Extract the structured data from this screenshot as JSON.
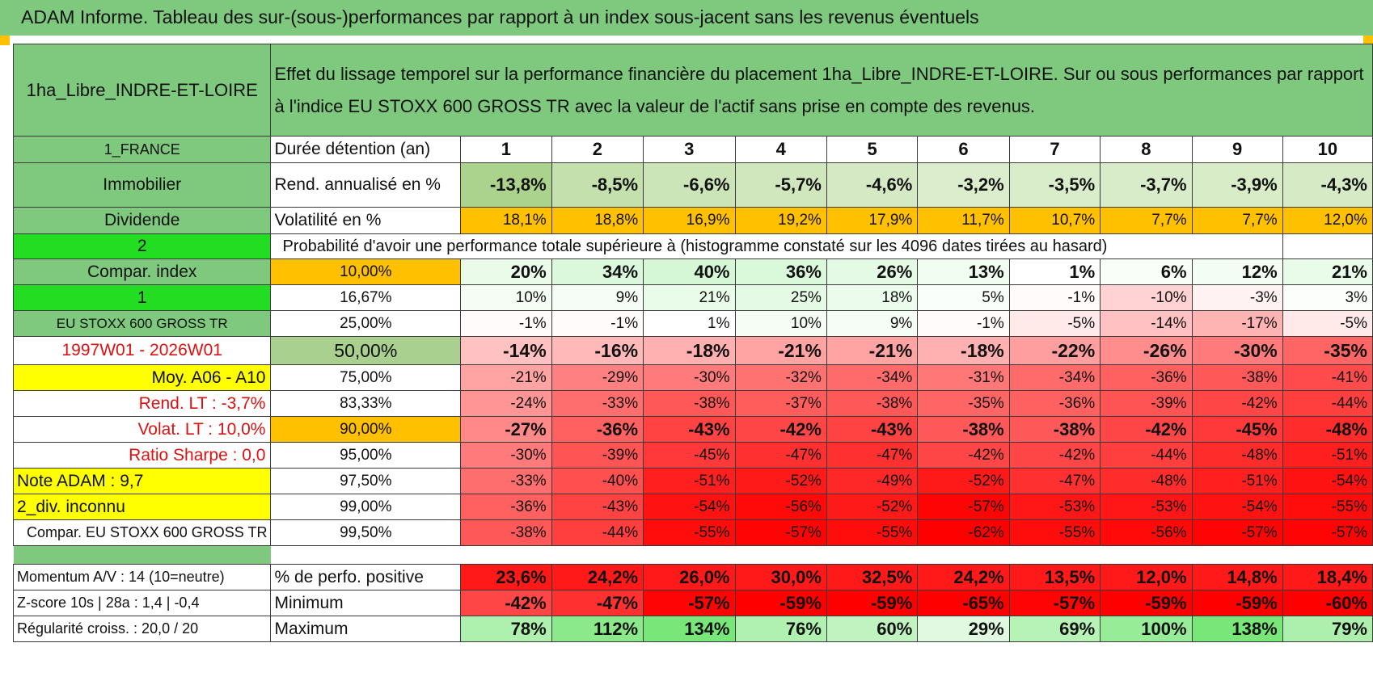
{
  "title": "ADAM Informe. Tableau des sur-(sous-)performances par rapport à un index sous-jacent sans les revenus éventuels",
  "colors": {
    "header_green": "#7fc97f",
    "bright_green": "#22dd22",
    "yellow": "#ffff00",
    "orange": "#ffc000",
    "light_green": "#a9d08e"
  },
  "fund_name": "1ha_Libre_INDRE-ET-LOIRE",
  "description": "Effet du lissage temporel sur la performance financière du placement 1ha_Libre_INDRE-ET-LOIRE. Sur ou sous performances par rapport à l'indice EU STOXX 600 GROSS TR avec la valeur de l'actif sans prise en compte des revenus.",
  "side": {
    "country": "1_FRANCE",
    "asset": "Immobilier",
    "dividend": "Dividende",
    "two": "2",
    "compar_index": "Compar. index",
    "one": "1",
    "index_name": "EU STOXX 600 GROSS TR",
    "period": "1997W01 - 2026W01",
    "moy": "Moy. A06 - A10",
    "rend_lt": "Rend. LT :    -3,7%",
    "volat_lt": "Volat. LT :    10,0%",
    "sharpe": "Ratio Sharpe :     0,0",
    "note": "Note ADAM : 9,7",
    "div": "2_div. inconnu",
    "compar_full": "Compar. EU STOXX 600 GROSS TR"
  },
  "labels": {
    "holding": "Durée détention (an)",
    "rend": "Rend. annualisé en %",
    "vol": "Volatilité en %",
    "proba": "Probabilité d'avoir une performance totale supérieure à (histogramme constaté sur les 4096 dates tirées au hasard)"
  },
  "years": [
    "1",
    "2",
    "3",
    "4",
    "5",
    "6",
    "7",
    "8",
    "9",
    "10"
  ],
  "rend": [
    "-13,8%",
    "-8,5%",
    "-6,6%",
    "-5,7%",
    "-4,6%",
    "-3,2%",
    "-3,5%",
    "-3,7%",
    "-3,9%",
    "-4,3%"
  ],
  "vol": [
    "18,1%",
    "18,8%",
    "16,9%",
    "19,2%",
    "17,9%",
    "11,7%",
    "10,7%",
    "7,7%",
    "7,7%",
    "12,0%"
  ],
  "percentile_rows": [
    {
      "pct": "10,00%",
      "v": [
        "20%",
        "34%",
        "40%",
        "36%",
        "26%",
        "13%",
        "1%",
        "6%",
        "12%",
        "21%"
      ]
    },
    {
      "pct": "16,67%",
      "v": [
        "10%",
        "9%",
        "21%",
        "25%",
        "18%",
        "5%",
        "-1%",
        "-10%",
        "-3%",
        "3%"
      ]
    },
    {
      "pct": "25,00%",
      "v": [
        "-1%",
        "-1%",
        "1%",
        "10%",
        "9%",
        "-1%",
        "-5%",
        "-14%",
        "-17%",
        "-5%"
      ]
    },
    {
      "pct": "50,00%",
      "v": [
        "-14%",
        "-16%",
        "-18%",
        "-21%",
        "-21%",
        "-18%",
        "-22%",
        "-26%",
        "-30%",
        "-35%"
      ]
    },
    {
      "pct": "75,00%",
      "v": [
        "-21%",
        "-29%",
        "-30%",
        "-32%",
        "-34%",
        "-31%",
        "-34%",
        "-36%",
        "-38%",
        "-41%"
      ]
    },
    {
      "pct": "83,33%",
      "v": [
        "-24%",
        "-33%",
        "-38%",
        "-37%",
        "-38%",
        "-35%",
        "-36%",
        "-39%",
        "-42%",
        "-44%"
      ]
    },
    {
      "pct": "90,00%",
      "v": [
        "-27%",
        "-36%",
        "-43%",
        "-42%",
        "-43%",
        "-38%",
        "-38%",
        "-42%",
        "-45%",
        "-48%"
      ]
    },
    {
      "pct": "95,00%",
      "v": [
        "-30%",
        "-39%",
        "-45%",
        "-47%",
        "-47%",
        "-42%",
        "-42%",
        "-44%",
        "-48%",
        "-51%"
      ]
    },
    {
      "pct": "97,50%",
      "v": [
        "-33%",
        "-40%",
        "-51%",
        "-52%",
        "-49%",
        "-52%",
        "-47%",
        "-48%",
        "-51%",
        "-54%"
      ]
    },
    {
      "pct": "99,00%",
      "v": [
        "-36%",
        "-43%",
        "-54%",
        "-56%",
        "-52%",
        "-57%",
        "-53%",
        "-53%",
        "-54%",
        "-55%"
      ]
    },
    {
      "pct": "99,50%",
      "v": [
        "-38%",
        "-44%",
        "-55%",
        "-57%",
        "-55%",
        "-62%",
        "-55%",
        "-56%",
        "-57%",
        "-57%"
      ]
    }
  ],
  "bottom": {
    "momentum": "Momentum A/V : 14 (10=neutre)",
    "zscore": "Z-score 10s | 28a : 1,4 | -0,4",
    "regularite": "Régularité croiss. : 20,0 / 20",
    "pos_label": "% de perfo. positive",
    "min_label": "Minimum",
    "max_label": "Maximum",
    "pos": [
      "23,6%",
      "24,2%",
      "26,0%",
      "30,0%",
      "32,5%",
      "24,2%",
      "13,5%",
      "12,0%",
      "14,8%",
      "18,4%"
    ],
    "min": [
      "-42%",
      "-47%",
      "-57%",
      "-59%",
      "-59%",
      "-65%",
      "-57%",
      "-59%",
      "-59%",
      "-60%"
    ],
    "max": [
      "78%",
      "112%",
      "134%",
      "76%",
      "60%",
      "29%",
      "69%",
      "100%",
      "138%",
      "79%"
    ]
  }
}
